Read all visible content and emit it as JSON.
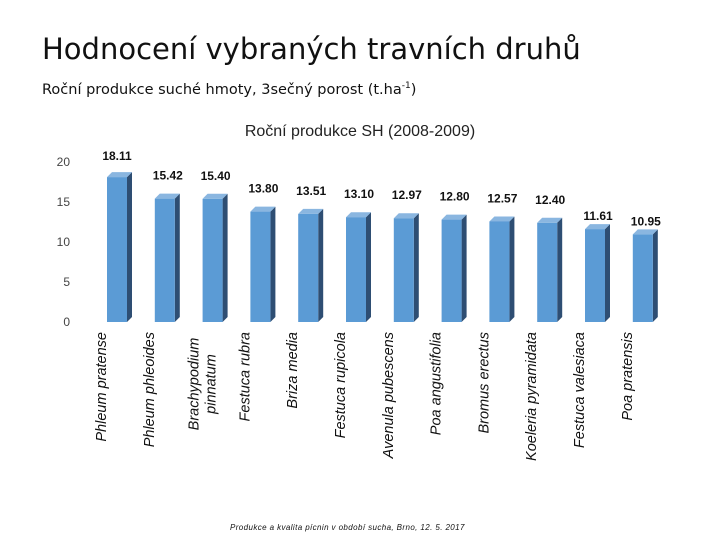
{
  "slide": {
    "title": "Hodnocení vybraných travních druhů",
    "subtitle_main": "Roční produkce suché hmoty, 3sečný porost (t.ha",
    "subtitle_sup": "-1",
    "subtitle_end": ")",
    "footer": "Produkce a kvalita pícnin v období sucha, Brno, 12. 5. 2017"
  },
  "colors": {
    "bar_front": "#5b9bd5",
    "bar_side": "#2e4e73",
    "bar_top": "#8ab6e0"
  },
  "chart_data": {
    "type": "bar",
    "title": "Roční produkce SH (2008-2009)",
    "categories": [
      [
        "Phleum pratense"
      ],
      [
        "Phleum phleoides"
      ],
      [
        "Brachypodium",
        "pinnatum"
      ],
      [
        "Festuca rubra"
      ],
      [
        "Briza media"
      ],
      [
        "Festuca rupicola"
      ],
      [
        "Avenula pubescens"
      ],
      [
        "Poa angustifolia"
      ],
      [
        "Bromus erectus"
      ],
      [
        "Koeleria pyramidata"
      ],
      [
        "Festuca valesiaca"
      ],
      [
        "Poa pratensis"
      ]
    ],
    "values": [
      18.11,
      15.42,
      15.4,
      13.8,
      13.51,
      13.1,
      12.97,
      12.8,
      12.57,
      12.4,
      11.61,
      10.95
    ],
    "value_labels": [
      "18.11",
      "15.42",
      "15.40",
      "13.80",
      "13.51",
      "13.10",
      "12.97",
      "12.80",
      "12.57",
      "12.40",
      "11.61",
      "10.95"
    ],
    "yticks": [
      0,
      5,
      10,
      15,
      20
    ],
    "ylim": [
      0,
      20
    ],
    "grid": false,
    "legend": "none"
  }
}
